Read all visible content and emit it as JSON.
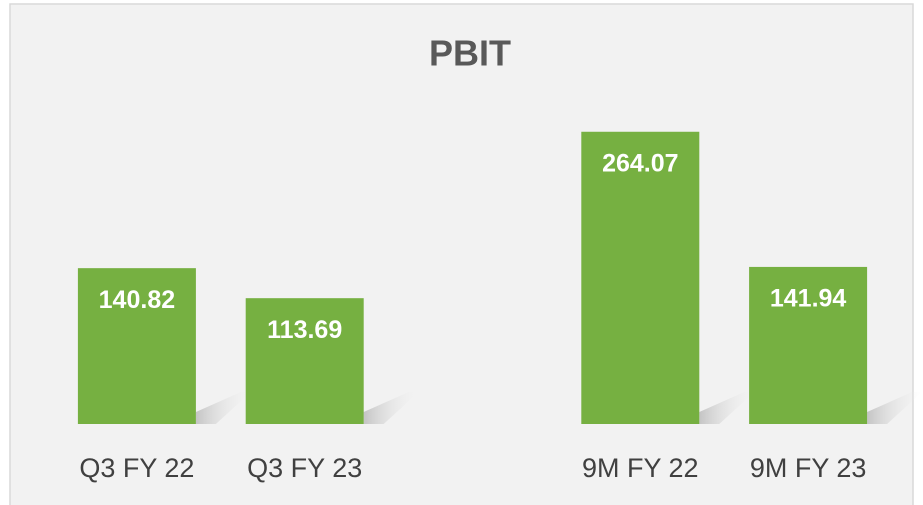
{
  "chart_data": {
    "type": "bar",
    "title": "PBIT",
    "categories": [
      "Q3 FY 22",
      "Q3 FY 23",
      null,
      "9M FY 22",
      "9M FY 23"
    ],
    "values": [
      140.82,
      113.69,
      null,
      264.07,
      141.94
    ],
    "color": "#76b041",
    "ylim": [
      0,
      300
    ]
  }
}
